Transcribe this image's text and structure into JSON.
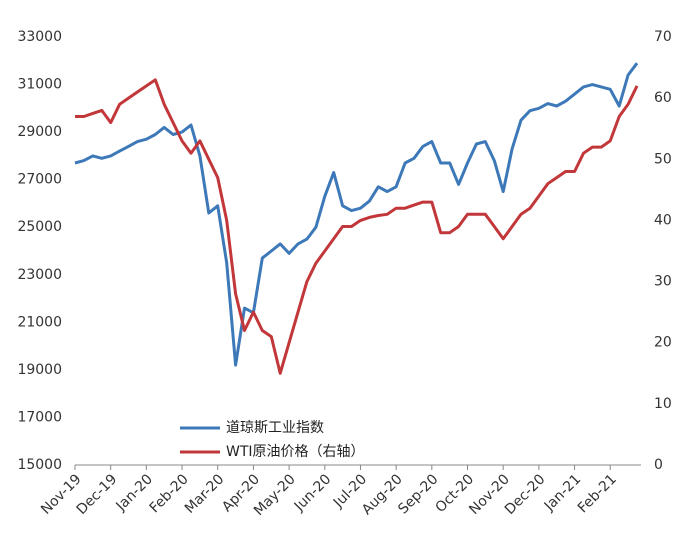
{
  "chart_data": {
    "type": "line",
    "categories": [
      "Nov-19",
      null,
      null,
      null,
      "Dec-19",
      null,
      null,
      null,
      "Jan-20",
      null,
      null,
      null,
      "Feb-20",
      null,
      null,
      null,
      "Mar-20",
      null,
      null,
      null,
      "Apr-20",
      null,
      null,
      null,
      "May-20",
      null,
      null,
      null,
      "Jun-20",
      null,
      null,
      null,
      "Jul-20",
      null,
      null,
      null,
      "Aug-20",
      null,
      null,
      null,
      "Sep-20",
      null,
      null,
      null,
      "Oct-20",
      null,
      null,
      null,
      "Nov-20",
      null,
      null,
      null,
      "Dec-20",
      null,
      null,
      null,
      "Jan-21",
      null,
      null,
      null,
      "Feb-21",
      null,
      null,
      null
    ],
    "series": [
      {
        "name": "道琼斯工业指数",
        "color": "#3d78b8",
        "values": [
          27700,
          27800,
          28000,
          27900,
          28000,
          28200,
          28400,
          28600,
          28700,
          28900,
          29200,
          28900,
          29000,
          29300,
          28000,
          25600,
          25900,
          23500,
          19200,
          21600,
          21400,
          23700,
          24000,
          24300,
          23900,
          24300,
          24500,
          25000,
          26300,
          27300,
          25900,
          25700,
          25800,
          26100,
          26700,
          26500,
          26700,
          27700,
          27900,
          28400,
          28600,
          27700,
          27700,
          26800,
          27700,
          28500,
          28600,
          27800,
          26500,
          28300,
          29500,
          29900,
          30000,
          30200,
          30100,
          30300,
          30600,
          30900,
          31000,
          30900,
          30800,
          30100,
          31400,
          31900
        ]
      },
      {
        "name": "WTI原油价格（右轴）",
        "color": "#c2373a",
        "axis": "y2",
        "values": [
          57,
          57,
          57.5,
          58,
          56,
          59,
          60,
          61,
          62,
          63,
          59,
          56,
          53,
          51,
          53,
          50,
          47,
          40,
          28,
          22,
          25,
          22,
          21,
          15,
          20,
          25,
          30,
          33,
          35,
          37,
          39,
          39,
          40,
          40.5,
          40.8,
          41,
          42,
          42,
          42.5,
          43,
          43,
          38,
          38,
          39,
          41,
          41,
          41,
          39,
          37,
          39,
          41,
          42,
          44,
          46,
          47,
          48,
          48,
          51,
          52,
          52,
          53,
          57,
          59,
          62
        ]
      }
    ],
    "ylim": [
      15000,
      33000
    ],
    "yticks": [
      15000,
      17000,
      19000,
      21000,
      23000,
      25000,
      27000,
      29000,
      31000,
      33000
    ],
    "y2lim": [
      0,
      70
    ],
    "y2ticks": [
      0,
      10,
      20,
      30,
      40,
      50,
      60,
      70
    ],
    "legend": "lower center",
    "grid": false
  }
}
